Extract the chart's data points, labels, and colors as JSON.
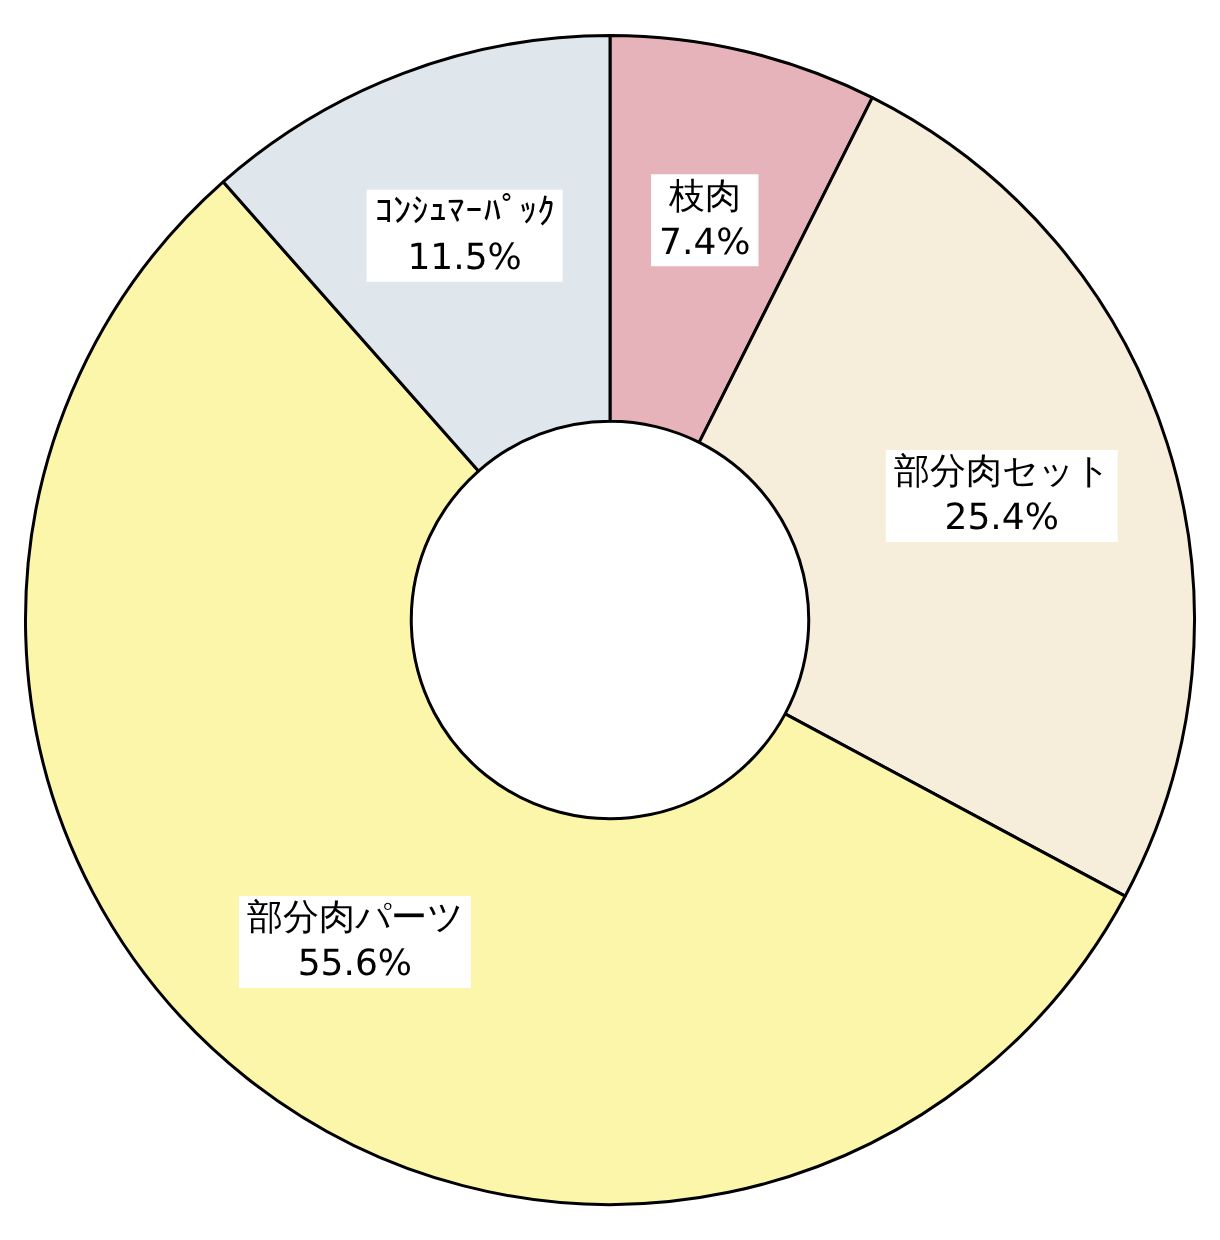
{
  "chart_data": {
    "type": "donut",
    "categories": [
      "枝肉",
      "部分肉セット",
      "部分肉パーツ",
      "ｺﾝｼｭﾏｰﾊﾟｯｸ"
    ],
    "values": [
      7.4,
      25.4,
      55.6,
      11.5
    ],
    "colors": [
      "#e6b3bb",
      "#f6eddb",
      "#fbf6a9",
      "#dfe7ec"
    ],
    "value_labels": [
      "7.4%",
      "25.4%",
      "55.6%",
      "11.5%"
    ],
    "legend": false
  }
}
